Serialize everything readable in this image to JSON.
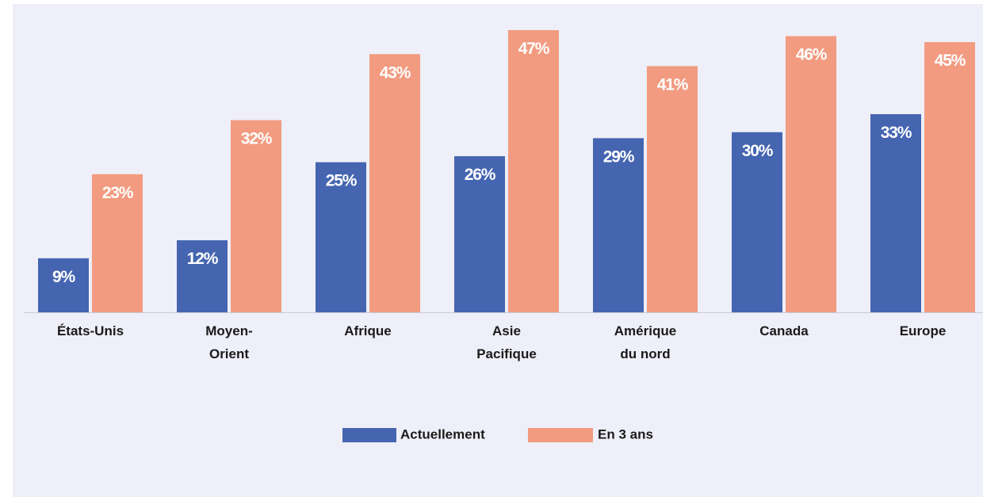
{
  "chart_data": {
    "type": "bar",
    "categories": [
      "États-Unis",
      "Moyen-Orient",
      "Afrique",
      "Asie Pacifique",
      "Amérique du nord",
      "Canada",
      "Europe"
    ],
    "series": [
      {
        "name": "Actuellement",
        "color": "#4565b0",
        "values": [
          9,
          12,
          25,
          26,
          29,
          30,
          33
        ],
        "value_labels": [
          "9%",
          "12%",
          "25%",
          "26%",
          "29%",
          "30%",
          "33%"
        ]
      },
      {
        "name": "En 3 ans",
        "color": "#f29b80",
        "values": [
          23,
          32,
          43,
          47,
          41,
          46,
          45
        ],
        "value_labels": [
          "23%",
          "32%",
          "43%",
          "47%",
          "41%",
          "46%",
          "45%"
        ]
      }
    ]
  }
}
